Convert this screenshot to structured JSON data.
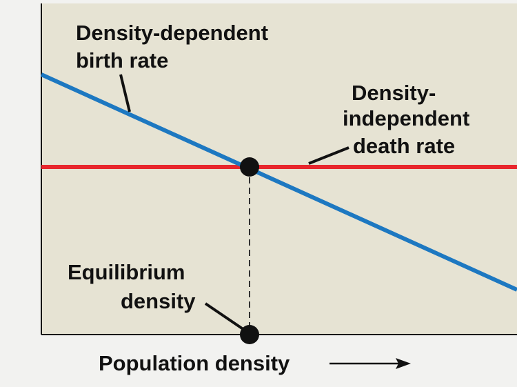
{
  "birth_rate_label": [
    "Density-dependent",
    "birth rate"
  ],
  "death_rate_label": [
    "Density-",
    "independent",
    "death rate"
  ],
  "equilibrium_label": [
    "Equilibrium",
    "density"
  ],
  "x_axis_label": "Population density"
}
